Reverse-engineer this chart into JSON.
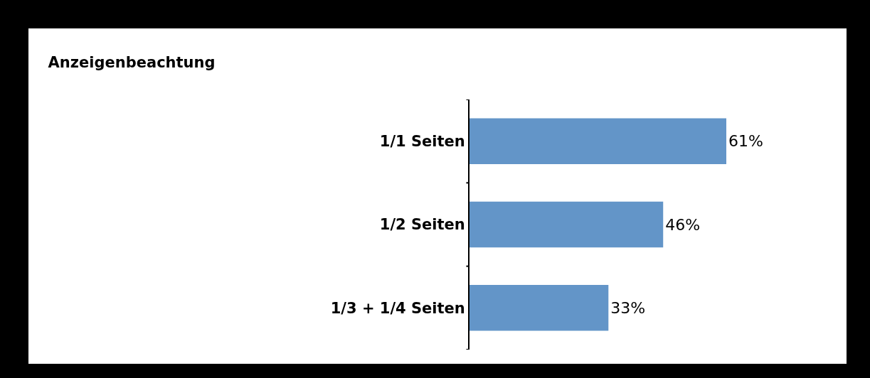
{
  "chart_data": {
    "type": "bar",
    "orientation": "horizontal",
    "title": "Anzeigenbeachtung",
    "categories": [
      "1/1 Seiten",
      "1/2 Seiten",
      "1/3 + 1/4 Seiten"
    ],
    "values": [
      61,
      46,
      33
    ],
    "value_labels": [
      "61%",
      "46%",
      "33%"
    ],
    "color": "#6395c8",
    "tick_labels": "y"
  }
}
